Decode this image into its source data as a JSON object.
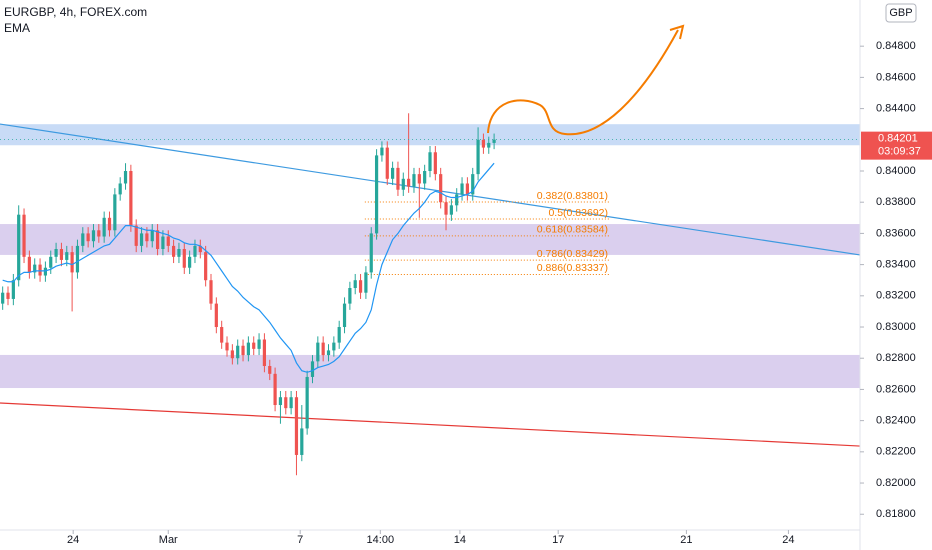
{
  "chart_data": {
    "type": "candlestick",
    "title": "EURGBP, 4h, FOREX.com",
    "indicator": "EMA",
    "currency": "GBP",
    "price_label": "0.84201",
    "countdown": "03:09:37",
    "up_color": "#26a69a",
    "down_color": "#ef5350",
    "xlim": [
      0,
      161
    ],
    "ylim": [
      0.81699,
      0.85096
    ],
    "yticks": [
      {
        "value": 0.818,
        "label": "0.81800"
      },
      {
        "value": 0.82,
        "label": "0.82000"
      },
      {
        "value": 0.822,
        "label": "0.82200"
      },
      {
        "value": 0.824,
        "label": "0.82400"
      },
      {
        "value": 0.826,
        "label": "0.82600"
      },
      {
        "value": 0.828,
        "label": "0.82800"
      },
      {
        "value": 0.83,
        "label": "0.83000"
      },
      {
        "value": 0.832,
        "label": "0.83200"
      },
      {
        "value": 0.834,
        "label": "0.83400"
      },
      {
        "value": 0.836,
        "label": "0.83600"
      },
      {
        "value": 0.838,
        "label": "0.83800"
      },
      {
        "value": 0.84,
        "label": "0.84000"
      },
      {
        "value": 0.844,
        "label": "0.84400"
      },
      {
        "value": 0.846,
        "label": "0.84600"
      },
      {
        "value": 0.848,
        "label": "0.84800"
      }
    ],
    "xticks": [
      {
        "value": 13.7,
        "label": "24"
      },
      {
        "value": 31.5,
        "label": "Mar"
      },
      {
        "value": 56.2,
        "label": "7"
      },
      {
        "value": 71.2,
        "label": "14:00"
      },
      {
        "value": 86.1,
        "label": "14"
      },
      {
        "value": 104.5,
        "label": "17"
      },
      {
        "value": 128.5,
        "label": "21"
      },
      {
        "value": 147.6,
        "label": "24"
      }
    ],
    "open": [
      0.8315,
      0.8322,
      0.8318,
      0.833,
      0.8372,
      0.8345,
      0.8335,
      0.834,
      0.8333,
      0.8338,
      0.8345,
      0.835,
      0.8343,
      0.8348,
      0.8335,
      0.8352,
      0.836,
      0.8355,
      0.8362,
      0.8358,
      0.837,
      0.8362,
      0.8385,
      0.8392,
      0.84,
      0.8365,
      0.8352,
      0.836,
      0.8355,
      0.8362,
      0.835,
      0.8358,
      0.8352,
      0.8345,
      0.835,
      0.8338,
      0.8345,
      0.8352,
      0.8348,
      0.833,
      0.8315,
      0.83,
      0.829,
      0.8285,
      0.828,
      0.8288,
      0.8282,
      0.829,
      0.8286,
      0.8292,
      0.8275,
      0.827,
      0.825,
      0.8255,
      0.8248,
      0.8255,
      0.8218,
      0.8235,
      0.8268,
      0.8278,
      0.829,
      0.8282,
      0.8285,
      0.829,
      0.83,
      0.8315,
      0.8325,
      0.833,
      0.8322,
      0.8335,
      0.836,
      0.841,
      0.8415,
      0.8395,
      0.8402,
      0.8388,
      0.8395,
      0.839,
      0.8398,
      0.8392,
      0.84,
      0.8412,
      0.8398,
      0.838,
      0.8372,
      0.8378,
      0.8385,
      0.8392,
      0.8385,
      0.8398,
      0.842,
      0.8415,
      0.8418
    ],
    "high": [
      0.8326,
      0.8326,
      0.8334,
      0.8378,
      0.8376,
      0.8349,
      0.8344,
      0.8344,
      0.8342,
      0.8349,
      0.8354,
      0.8354,
      0.8352,
      0.8352,
      0.8356,
      0.8364,
      0.8364,
      0.8366,
      0.8366,
      0.8374,
      0.8374,
      0.8389,
      0.8396,
      0.8405,
      0.8404,
      0.8369,
      0.8364,
      0.8364,
      0.8366,
      0.8366,
      0.8362,
      0.8362,
      0.8356,
      0.8354,
      0.8354,
      0.8349,
      0.8356,
      0.8356,
      0.8352,
      0.8334,
      0.8319,
      0.8304,
      0.8294,
      0.8289,
      0.8292,
      0.8292,
      0.8294,
      0.8294,
      0.8296,
      0.8296,
      0.8279,
      0.8274,
      0.8259,
      0.8259,
      0.8259,
      0.8259,
      0.825,
      0.8272,
      0.8282,
      0.8294,
      0.8294,
      0.8289,
      0.8294,
      0.8304,
      0.8319,
      0.8329,
      0.8334,
      0.8334,
      0.8339,
      0.8364,
      0.8414,
      0.8419,
      0.8419,
      0.8406,
      0.8406,
      0.8399,
      0.8437,
      0.8402,
      0.8402,
      0.8404,
      0.8416,
      0.8416,
      0.8402,
      0.8384,
      0.8382,
      0.8389,
      0.8396,
      0.8396,
      0.8402,
      0.8428,
      0.8424,
      0.8422,
      0.8424
    ],
    "low": [
      0.8311,
      0.8314,
      0.8314,
      0.8326,
      0.8341,
      0.8331,
      0.8331,
      0.8329,
      0.8329,
      0.8334,
      0.8341,
      0.8339,
      0.8339,
      0.831,
      0.8331,
      0.8348,
      0.8351,
      0.8351,
      0.8354,
      0.8354,
      0.8358,
      0.8358,
      0.8381,
      0.8388,
      0.8361,
      0.8348,
      0.8348,
      0.8351,
      0.8351,
      0.8346,
      0.8346,
      0.8348,
      0.8341,
      0.8341,
      0.8334,
      0.8334,
      0.8341,
      0.8344,
      0.8326,
      0.8311,
      0.8296,
      0.8286,
      0.8281,
      0.8276,
      0.8276,
      0.8278,
      0.8278,
      0.8282,
      0.8282,
      0.8271,
      0.8266,
      0.8246,
      0.8238,
      0.8244,
      0.8244,
      0.8205,
      0.8214,
      0.8231,
      0.8264,
      0.8274,
      0.8278,
      0.8278,
      0.8281,
      0.8286,
      0.8296,
      0.8311,
      0.8321,
      0.8318,
      0.8318,
      0.8331,
      0.8356,
      0.8406,
      0.8391,
      0.8391,
      0.8384,
      0.8384,
      0.8386,
      0.8386,
      0.837,
      0.8388,
      0.8396,
      0.8394,
      0.8376,
      0.8362,
      0.8368,
      0.8374,
      0.8381,
      0.8381,
      0.8381,
      0.8394,
      0.8411,
      0.8411,
      0.8414
    ],
    "close": [
      0.8322,
      0.8318,
      0.833,
      0.8372,
      0.8345,
      0.8335,
      0.834,
      0.8333,
      0.8338,
      0.8345,
      0.835,
      0.8343,
      0.8348,
      0.8335,
      0.8352,
      0.836,
      0.8355,
      0.8362,
      0.8358,
      0.837,
      0.8362,
      0.8385,
      0.8392,
      0.84,
      0.8365,
      0.8352,
      0.836,
      0.8355,
      0.8362,
      0.835,
      0.8358,
      0.8352,
      0.8345,
      0.835,
      0.8338,
      0.8345,
      0.8352,
      0.8348,
      0.833,
      0.8315,
      0.83,
      0.829,
      0.8285,
      0.828,
      0.8288,
      0.8282,
      0.829,
      0.8286,
      0.8292,
      0.8275,
      0.827,
      0.825,
      0.8255,
      0.8248,
      0.8255,
      0.8218,
      0.8235,
      0.8268,
      0.8278,
      0.829,
      0.8282,
      0.8285,
      0.829,
      0.83,
      0.8315,
      0.8325,
      0.833,
      0.8322,
      0.8335,
      0.836,
      0.841,
      0.8415,
      0.8395,
      0.8402,
      0.8388,
      0.8395,
      0.839,
      0.8398,
      0.8392,
      0.84,
      0.8412,
      0.8398,
      0.838,
      0.8372,
      0.8378,
      0.8385,
      0.8392,
      0.8385,
      0.8398,
      0.842,
      0.8415,
      0.8418,
      0.84201
    ],
    "ema": {
      "color": "#2196f3",
      "values": [
        0.833,
        0.8329,
        0.8329,
        0.8333,
        0.8335,
        0.8335,
        0.8336,
        0.8336,
        0.8336,
        0.8337,
        0.8339,
        0.834,
        0.8341,
        0.834,
        0.8342,
        0.8344,
        0.8346,
        0.8348,
        0.835,
        0.8352,
        0.8353,
        0.8357,
        0.8361,
        0.8365,
        0.8365,
        0.8364,
        0.8363,
        0.8362,
        0.8362,
        0.8361,
        0.836,
        0.8359,
        0.8357,
        0.8356,
        0.8354,
        0.8353,
        0.8353,
        0.8352,
        0.8349,
        0.8346,
        0.8341,
        0.8336,
        0.8331,
        0.8326,
        0.8323,
        0.8319,
        0.8316,
        0.8313,
        0.8311,
        0.8307,
        0.8303,
        0.8298,
        0.8293,
        0.8289,
        0.8285,
        0.8277,
        0.8272,
        0.8271,
        0.8272,
        0.8274,
        0.8275,
        0.8276,
        0.8278,
        0.8281,
        0.8286,
        0.8291,
        0.8296,
        0.8299,
        0.8303,
        0.8311,
        0.8327,
        0.834,
        0.8348,
        0.8356,
        0.836,
        0.8365,
        0.8369,
        0.8373,
        0.8376,
        0.838,
        0.8385,
        0.8387,
        0.8386,
        0.8384,
        0.8383,
        0.8383,
        0.8384,
        0.8385,
        0.8387,
        0.8393,
        0.8397,
        0.8401,
        0.8405
      ]
    },
    "zones": [
      {
        "low": 0.84165,
        "high": 0.843,
        "color": "#c8dbf6"
      },
      {
        "low": 0.83462,
        "high": 0.8366,
        "color": "#dacfee"
      },
      {
        "low": 0.82609,
        "high": 0.82821,
        "color": "#dacfee"
      }
    ],
    "trendlines": [
      {
        "start": 0.84301,
        "end": 0.83462,
        "color": "#3d9ae0"
      },
      {
        "start": 0.82513,
        "end": 0.82237,
        "color": "#e53935"
      }
    ],
    "fib_x": [
      68.3,
      114.2
    ],
    "fib_levels": [
      {
        "value": 0.83801,
        "label": "0.382(0.83801)"
      },
      {
        "value": 0.83692,
        "label": "0.5(0.83692)"
      },
      {
        "value": 0.83584,
        "label": "0.618(0.83584)"
      },
      {
        "value": 0.83429,
        "label": "0.786(0.83429)"
      },
      {
        "value": 0.83337,
        "label": "0.886(0.83337)"
      }
    ],
    "fib_color": "#f57c00"
  }
}
